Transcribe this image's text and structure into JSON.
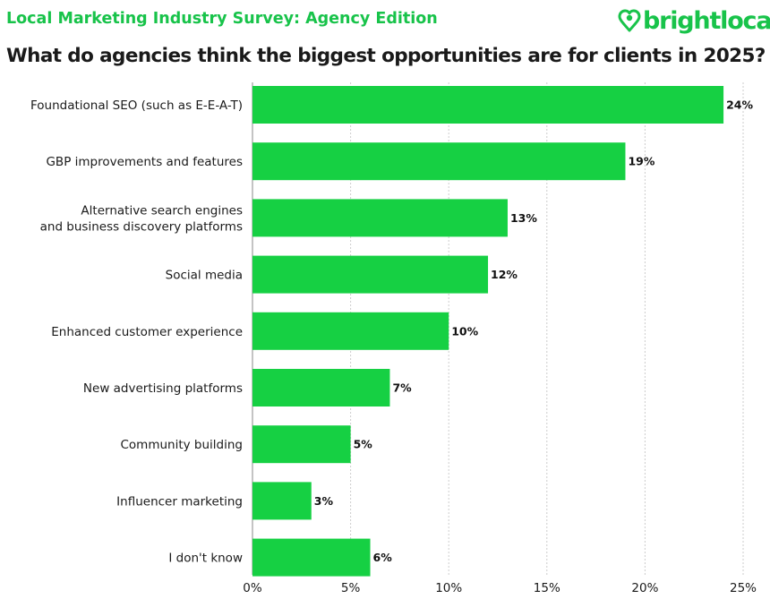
{
  "header": {
    "survey_title": "Local Marketing Industry Survey: Agency Edition",
    "logo_text": "brightlocal",
    "question": "What do agencies think the biggest opportunities are for clients in 2025?"
  },
  "colors": {
    "accent": "#18c34a",
    "bar": "#16d043",
    "text": "#1a1a1a",
    "grid": "#cccccc"
  },
  "chart_data": {
    "type": "bar",
    "orientation": "horizontal",
    "categories": [
      [
        "Foundational SEO (such as E-E-A-T)"
      ],
      [
        "GBP improvements and features"
      ],
      [
        "Alternative search engines",
        "and business discovery platforms"
      ],
      [
        "Social media"
      ],
      [
        "Enhanced customer experience"
      ],
      [
        "New advertising platforms"
      ],
      [
        "Community building"
      ],
      [
        "Influencer marketing"
      ],
      [
        "I don't know"
      ]
    ],
    "values": [
      24,
      19,
      13,
      12,
      10,
      7,
      5,
      3,
      6
    ],
    "value_labels": [
      "24%",
      "19%",
      "13%",
      "12%",
      "10%",
      "7%",
      "5%",
      "3%",
      "6%"
    ],
    "x_ticks": [
      0,
      5,
      10,
      15,
      20,
      25
    ],
    "x_tick_labels": [
      "0%",
      "5%",
      "10%",
      "15%",
      "20%",
      "25%"
    ],
    "xlim": [
      0,
      25
    ],
    "grid": true,
    "legend": "none"
  }
}
